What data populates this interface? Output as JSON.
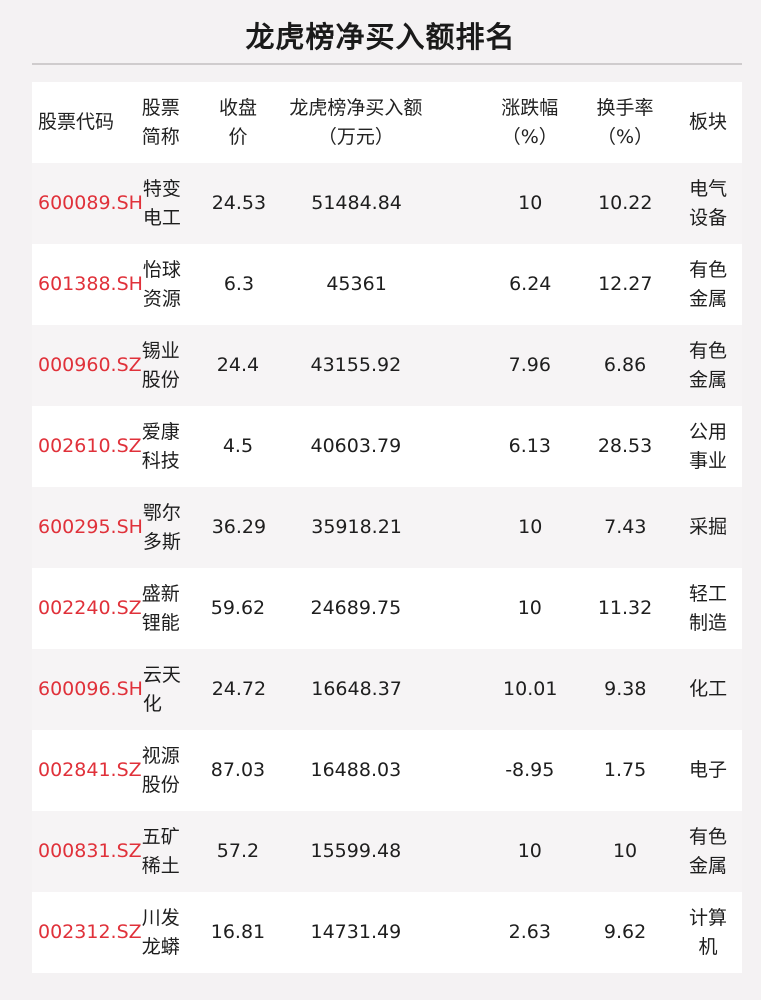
{
  "title": "龙虎榜净买入额排名",
  "header": [
    [
      "股票代码"
    ],
    [
      "股票",
      "简称"
    ],
    [
      "收盘",
      "价"
    ],
    [
      "龙虎榜净买入额",
      "（万元）"
    ],
    [
      "涨跌幅",
      "（%）"
    ],
    [
      "换手率",
      "（%）"
    ],
    [
      "板块"
    ]
  ],
  "rows": [
    {
      "code": "600089.SH",
      "name": [
        "特变",
        "电工"
      ],
      "close": "24.53",
      "net_buy": "51484.84",
      "change": "10",
      "turnover": "10.22",
      "sector": [
        "电气",
        "设备"
      ]
    },
    {
      "code": "601388.SH",
      "name": [
        "怡球",
        "资源"
      ],
      "close": "6.3",
      "net_buy": "45361",
      "change": "6.24",
      "turnover": "12.27",
      "sector": [
        "有色",
        "金属"
      ]
    },
    {
      "code": "000960.SZ",
      "name": [
        "锡业",
        "股份"
      ],
      "close": "24.4",
      "net_buy": "43155.92",
      "change": "7.96",
      "turnover": "6.86",
      "sector": [
        "有色",
        "金属"
      ]
    },
    {
      "code": "002610.SZ",
      "name": [
        "爱康",
        "科技"
      ],
      "close": "4.5",
      "net_buy": "40603.79",
      "change": "6.13",
      "turnover": "28.53",
      "sector": [
        "公用",
        "事业"
      ]
    },
    {
      "code": "600295.SH",
      "name": [
        "鄂尔",
        "多斯"
      ],
      "close": "36.29",
      "net_buy": "35918.21",
      "change": "10",
      "turnover": "7.43",
      "sector": [
        "采掘"
      ]
    },
    {
      "code": "002240.SZ",
      "name": [
        "盛新",
        "锂能"
      ],
      "close": "59.62",
      "net_buy": "24689.75",
      "change": "10",
      "turnover": "11.32",
      "sector": [
        "轻工",
        "制造"
      ]
    },
    {
      "code": "600096.SH",
      "name": [
        "云天",
        "化"
      ],
      "close": "24.72",
      "net_buy": "16648.37",
      "change": "10.01",
      "turnover": "9.38",
      "sector": [
        "化工"
      ]
    },
    {
      "code": "002841.SZ",
      "name": [
        "视源",
        "股份"
      ],
      "close": "87.03",
      "net_buy": "16488.03",
      "change": "-8.95",
      "turnover": "1.75",
      "sector": [
        "电子"
      ]
    },
    {
      "code": "000831.SZ",
      "name": [
        "五矿",
        "稀土"
      ],
      "close": "57.2",
      "net_buy": "15599.48",
      "change": "10",
      "turnover": "10",
      "sector": [
        "有色",
        "金属"
      ]
    },
    {
      "code": "002312.SZ",
      "name": [
        "川发",
        "龙蟒"
      ],
      "close": "16.81",
      "net_buy": "14731.49",
      "change": "2.63",
      "turnover": "9.62",
      "sector": [
        "计算",
        "机"
      ]
    }
  ],
  "colors": {
    "code": "#e0313a",
    "background": "#f4f2f3",
    "row_alt": "#f6f4f5"
  }
}
